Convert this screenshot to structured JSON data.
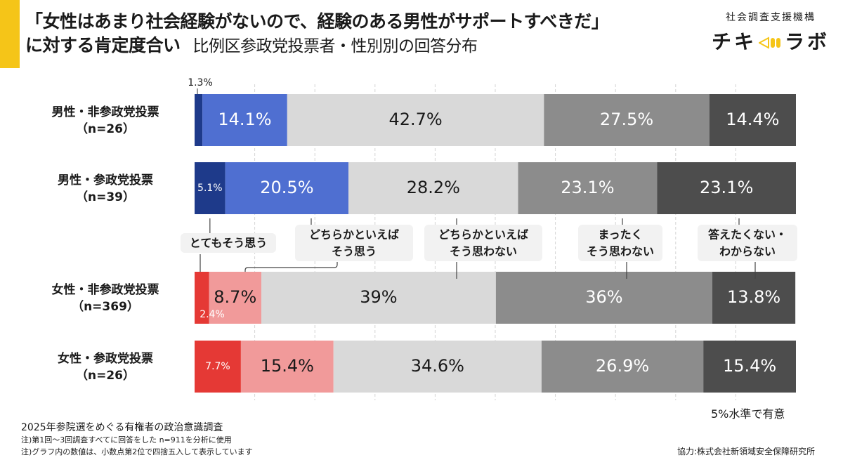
{
  "title": {
    "line1": "「女性はあまり社会経験がないので、経験のある男性がサポートすべきだ」",
    "line2": "に対する肯定度合い",
    "subtitle": "比例区参政党投票者・性別別の回答分布"
  },
  "logo": {
    "org": "社会調査支援機構",
    "left": "チキ",
    "right": "ラボ"
  },
  "significance": "5%水準で有意",
  "footnotes": [
    "2025年参院選をめぐる有権者の政治意識調査",
    "注)第1回〜3回調査すべてに回答をした n=911を分析に使用",
    "注)グラフ内の数値は、小数点第2位で四捨五入して表示しています"
  ],
  "credit": "協力:株式会社新領域安全保障研究所",
  "colors": {
    "male": [
      "#1e3a8a",
      "#4f6fd1",
      "#d9d9d9",
      "#8c8c8c",
      "#4d4d4d"
    ],
    "female": [
      "#e53935",
      "#f19a9a",
      "#d9d9d9",
      "#8c8c8c",
      "#4d4d4d"
    ]
  },
  "chart_data": {
    "type": "bar",
    "orientation": "horizontal-stacked-100",
    "categories_responses": [
      "とてもそう思う",
      "どちらかといえばそう思う",
      "どちらかといえばそう思わない",
      "まったくそう思わない",
      "答えたくない・わからない"
    ],
    "legend_labels": [
      [
        "とてもそう思う"
      ],
      [
        "どちらかといえば",
        "そう思う"
      ],
      [
        "どちらかといえば",
        "そう思わない"
      ],
      [
        "まったく",
        "そう思わない"
      ],
      [
        "答えたくない・",
        "わからない"
      ]
    ],
    "groups": [
      {
        "name": "男性・非参政党投票",
        "n": "（n=26）",
        "gender": "male",
        "values": [
          1.3,
          14.1,
          42.7,
          27.5,
          14.4
        ],
        "labels": [
          "1.3%",
          "14.1%",
          "42.7%",
          "27.5%",
          "14.4%"
        ]
      },
      {
        "name": "男性・参政党投票",
        "n": "（n=39）",
        "gender": "male",
        "values": [
          5.1,
          20.5,
          28.2,
          23.1,
          23.1
        ],
        "labels": [
          "5.1%",
          "20.5%",
          "28.2%",
          "23.1%",
          "23.1%"
        ]
      },
      {
        "name": "女性・非参政党投票",
        "n": "（n=369）",
        "gender": "female",
        "values": [
          2.4,
          8.7,
          39.0,
          36.0,
          13.8
        ],
        "labels": [
          "2.4%",
          "8.7%",
          "39%",
          "36%",
          "13.8%"
        ]
      },
      {
        "name": "女性・参政党投票",
        "n": "（n=26）",
        "gender": "female",
        "values": [
          7.7,
          15.4,
          34.6,
          26.9,
          15.4
        ],
        "labels": [
          "7.7%",
          "15.4%",
          "34.6%",
          "26.9%",
          "15.4%"
        ]
      }
    ],
    "xlim": [
      0,
      100
    ],
    "grid": true
  }
}
